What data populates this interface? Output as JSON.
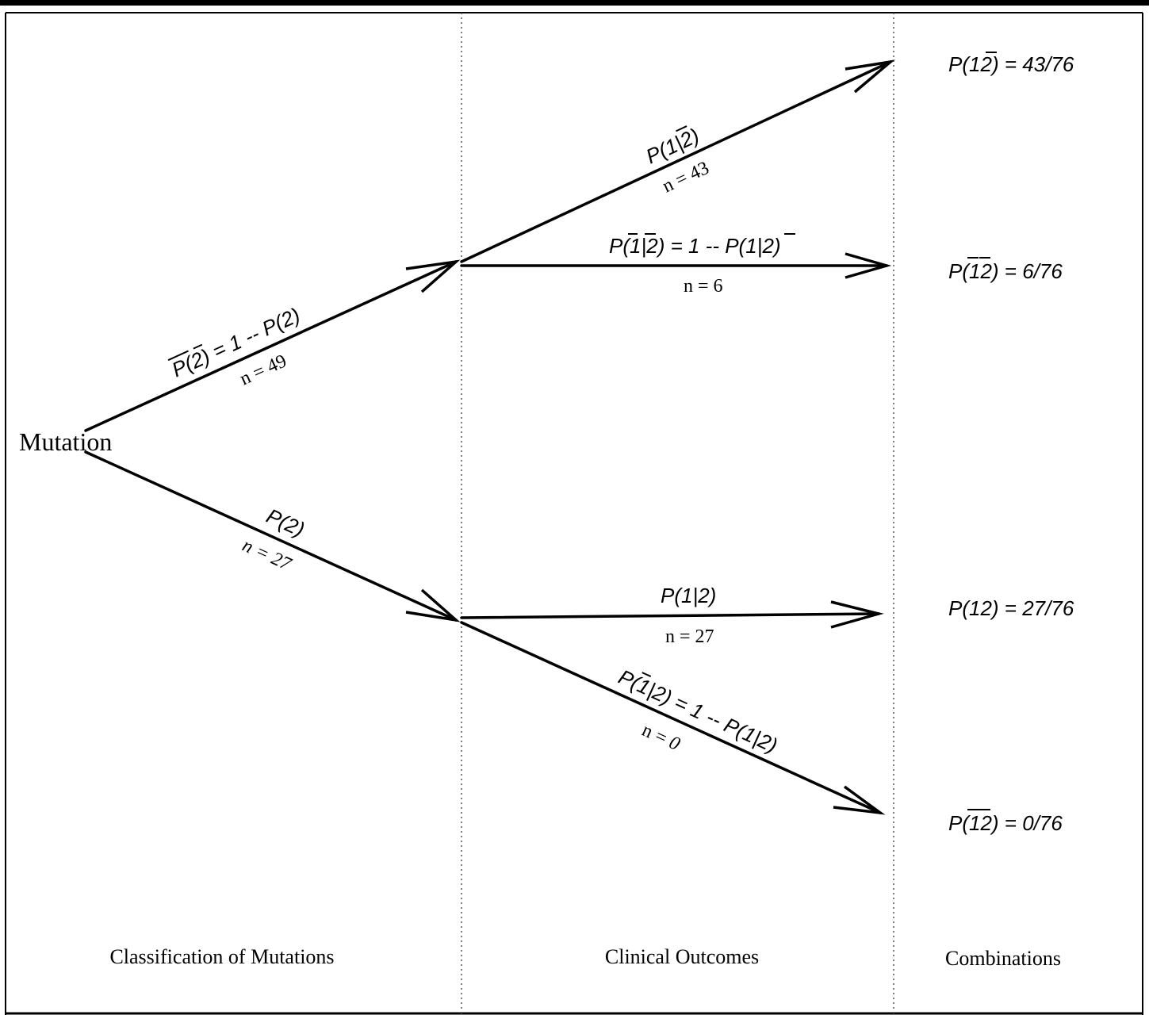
{
  "root": {
    "label": "Mutation"
  },
  "edges": {
    "upper_class": {
      "prob": "P(2) = 1 -- P(2)",
      "prob_part1": "P(",
      "prob_2": "2",
      "prob_part2": ") = 1 -- P(2)",
      "n": "n = 49"
    },
    "lower_class": {
      "prob": "P(2)",
      "n": "n = 27"
    },
    "upper_upper": {
      "prob": "P(1|2)",
      "prob_a": "P(1|",
      "prob_b": "2",
      "prob_c": ")",
      "n": "n = 43"
    },
    "upper_lower": {
      "prob": "P(1|2) = 1 -- P(1|2)",
      "prob_a": "P(",
      "prob_b": "1",
      "prob_c": "|",
      "prob_d": "2",
      "prob_e": ") = 1 -- P(1|",
      "prob_f": "2",
      "prob_g": ")",
      "n": "n = 6"
    },
    "lower_upper": {
      "prob": "P(1|2)",
      "n": "n = 27"
    },
    "lower_lower": {
      "prob": "P(1|2) = 1 -- P(1|2)",
      "prob_a": "P(",
      "prob_b": "1",
      "prob_c": "|2) = 1 -- P(1|2)",
      "n_prefix": "n = ",
      "n_value": "0"
    }
  },
  "combinations": [
    {
      "pre": "P(1",
      "bar": "2",
      "post": ") = 43/76"
    },
    {
      "pre": "P(",
      "bar": "12",
      "post": ") = 6/76"
    },
    {
      "pre": "P(12) = 27/76"
    },
    {
      "pre": "P(",
      "bar": "12",
      "post": ") = 0/76"
    }
  ],
  "columns": [
    "Classification of Mutations",
    "Clinical Outcomes",
    "Combinations"
  ]
}
